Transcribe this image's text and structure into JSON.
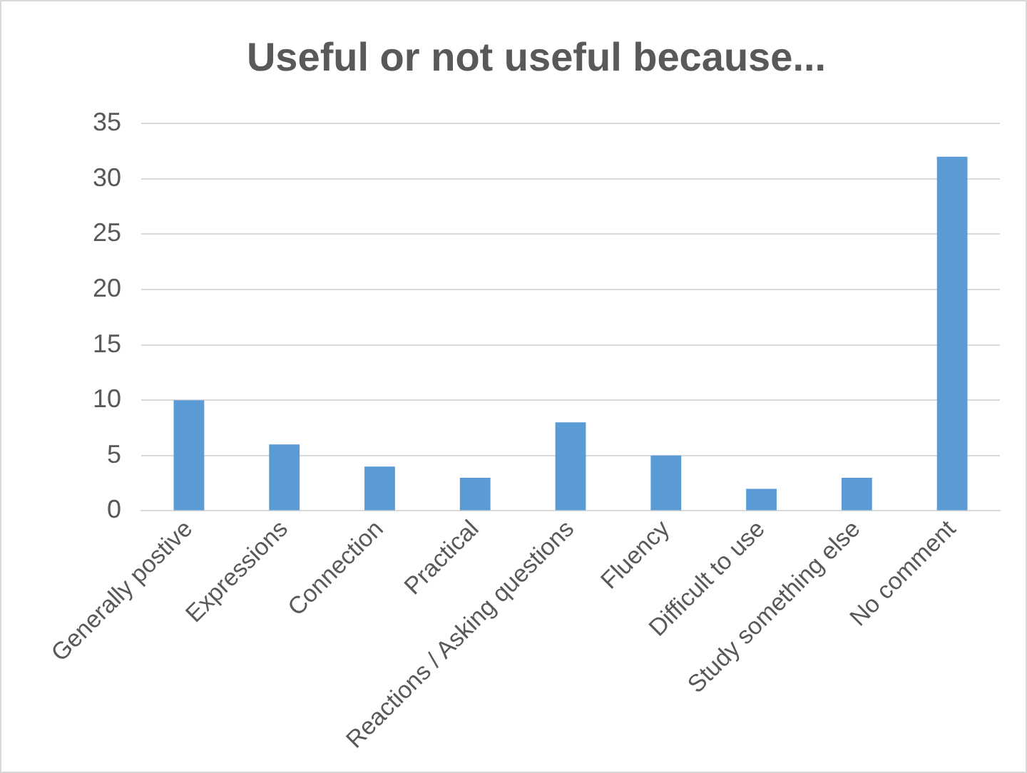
{
  "chart_data": {
    "type": "bar",
    "title": "Useful or not useful because...",
    "categories": [
      "Generally postive",
      "Expressions",
      "Connection",
      "Practical",
      "Reactions / Asking questions",
      "Fluency",
      "Difficult to use",
      "Study something else",
      "No comment"
    ],
    "values": [
      10,
      6,
      4,
      3,
      8,
      5,
      2,
      3,
      32
    ],
    "color": "#5b9bd5",
    "ylim": [
      0,
      35
    ],
    "yticks": [
      0,
      5,
      10,
      15,
      20,
      25,
      30,
      35
    ],
    "grid": "y"
  }
}
